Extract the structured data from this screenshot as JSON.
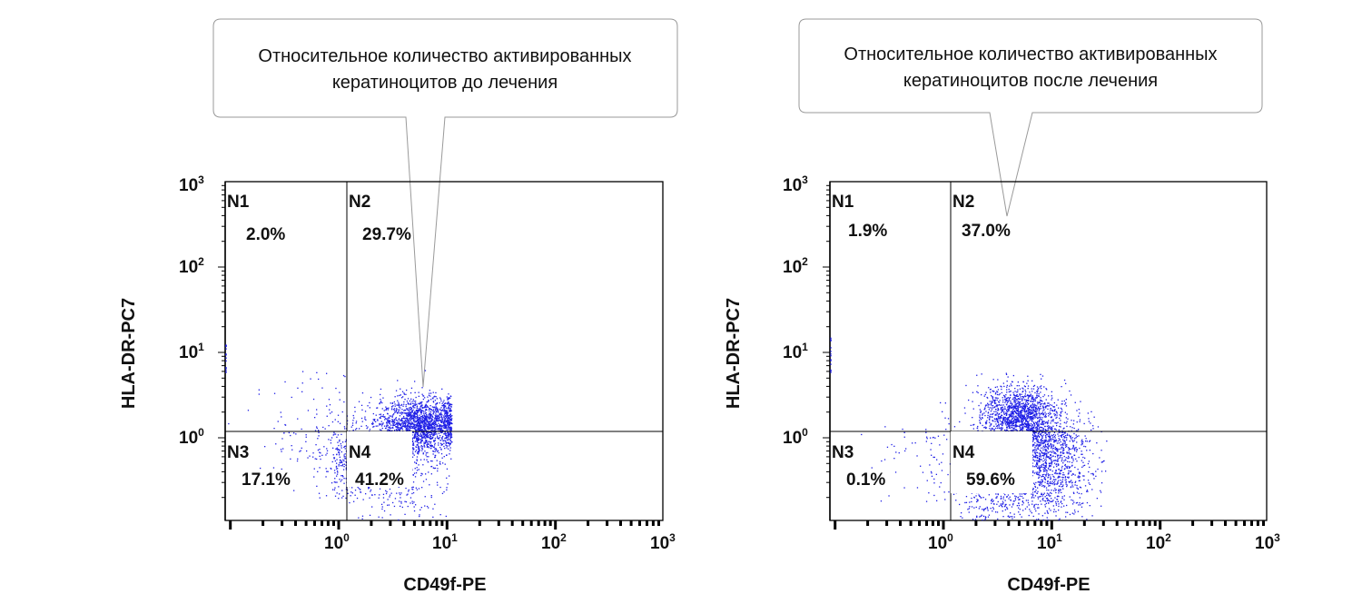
{
  "chart_data": [
    {
      "type": "scatter",
      "callout": [
        "Относительное количество активированных",
        "кератиноцитов до лечения"
      ],
      "xlabel": "CD49f-PE",
      "ylabel": "HLA-DR-PC7",
      "x_scale": "log",
      "y_scale": "log",
      "xlim": [
        0.1,
        1000
      ],
      "ylim": [
        0.1,
        1000
      ],
      "x_ticks": [
        {
          "base": "10",
          "exp": "0"
        },
        {
          "base": "10",
          "exp": "1"
        },
        {
          "base": "10",
          "exp": "2"
        },
        {
          "base": "10",
          "exp": "3"
        }
      ],
      "y_ticks": [
        {
          "base": "10",
          "exp": "0"
        },
        {
          "base": "10",
          "exp": "1"
        },
        {
          "base": "10",
          "exp": "2"
        },
        {
          "base": "10",
          "exp": "3"
        }
      ],
      "gate": {
        "x": 1.2,
        "y": 1.1
      },
      "quadrants": [
        {
          "name": "N1",
          "percent": "2.0%"
        },
        {
          "name": "N2",
          "percent": "29.7%"
        },
        {
          "name": "N3",
          "percent": "17.1%"
        },
        {
          "name": "N4",
          "percent": "41.2%"
        }
      ],
      "point_color": "#1f1fe6",
      "clusters": [
        {
          "cx": 6.0,
          "cy": 1.5,
          "sx": 0.19,
          "sy": 0.15,
          "n": 1500
        },
        {
          "cx": 4.0,
          "cy": 1.0,
          "sx": 0.22,
          "sy": 0.22,
          "n": 550
        },
        {
          "cx": 1.3,
          "cy": 0.5,
          "sx": 0.14,
          "sy": 0.2,
          "n": 350
        },
        {
          "cx": 0.6,
          "cy": 1.2,
          "sx": 0.26,
          "sy": 0.35,
          "n": 120
        },
        {
          "cx": 4.0,
          "cy": 0.25,
          "sx": 0.22,
          "sy": 0.2,
          "n": 160
        }
      ],
      "x_max": 11,
      "y_max": 6.5
    },
    {
      "type": "scatter",
      "callout": [
        "Относительное количество активированных",
        "кератиноцитов после лечения"
      ],
      "xlabel": "CD49f-PE",
      "ylabel": "HLA-DR-PC7",
      "x_scale": "log",
      "y_scale": "log",
      "xlim": [
        0.1,
        1000
      ],
      "ylim": [
        0.1,
        1000
      ],
      "x_ticks": [
        {
          "base": "10",
          "exp": "0"
        },
        {
          "base": "10",
          "exp": "1"
        },
        {
          "base": "10",
          "exp": "2"
        },
        {
          "base": "10",
          "exp": "3"
        }
      ],
      "y_ticks": [
        {
          "base": "10",
          "exp": "0"
        },
        {
          "base": "10",
          "exp": "1"
        },
        {
          "base": "10",
          "exp": "2"
        },
        {
          "base": "10",
          "exp": "3"
        }
      ],
      "gate": {
        "x": 1.2,
        "y": 1.1
      },
      "quadrants": [
        {
          "name": "N1",
          "percent": "1.9%"
        },
        {
          "name": "N2",
          "percent": "37.0%"
        },
        {
          "name": "N3",
          "percent": "0.1%"
        },
        {
          "name": "N4",
          "percent": "59.6%"
        }
      ],
      "point_color": "#1f1fe6",
      "clusters": [
        {
          "cx": 5.0,
          "cy": 2.0,
          "sx": 0.17,
          "sy": 0.16,
          "n": 1100
        },
        {
          "cx": 6.0,
          "cy": 0.9,
          "sx": 0.24,
          "sy": 0.22,
          "n": 1300
        },
        {
          "cx": 10.0,
          "cy": 0.35,
          "sx": 0.2,
          "sy": 0.28,
          "n": 650
        },
        {
          "cx": 3.0,
          "cy": 0.2,
          "sx": 0.2,
          "sy": 0.18,
          "n": 300
        },
        {
          "cx": 0.7,
          "cy": 0.6,
          "sx": 0.25,
          "sy": 0.35,
          "n": 90
        }
      ],
      "x_max": 32,
      "y_max": 9
    }
  ]
}
